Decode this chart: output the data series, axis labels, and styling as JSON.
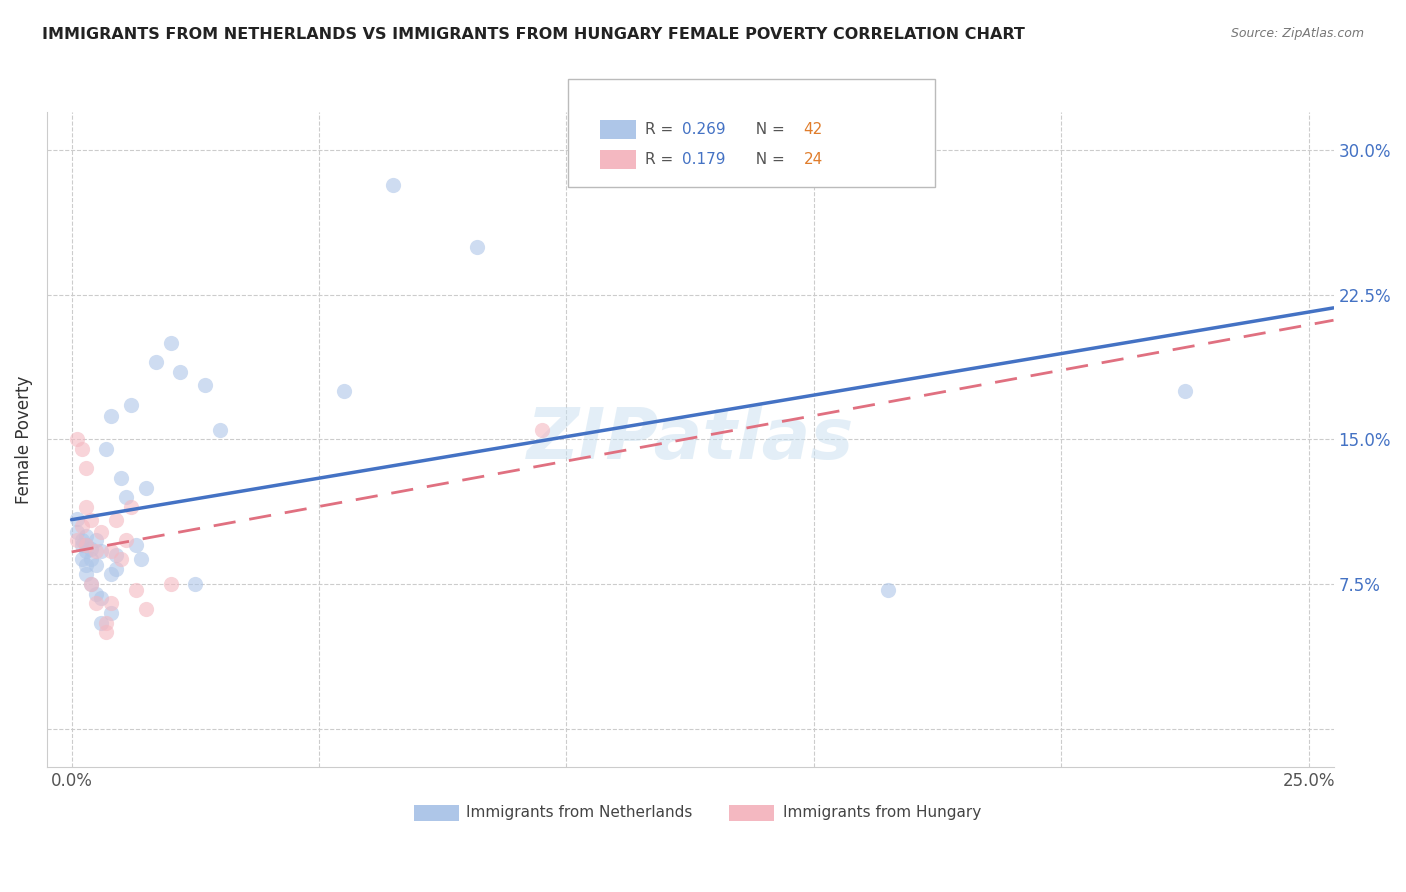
{
  "title": "IMMIGRANTS FROM NETHERLANDS VS IMMIGRANTS FROM HUNGARY FEMALE POVERTY CORRELATION CHART",
  "source": "Source: ZipAtlas.com",
  "ylabel": "Female Poverty",
  "xlim": [
    -0.005,
    0.255
  ],
  "ylim": [
    -0.02,
    0.32
  ],
  "x_ticks": [
    0.0,
    0.05,
    0.1,
    0.15,
    0.2,
    0.25
  ],
  "x_tick_labels": [
    "0.0%",
    "",
    "",
    "",
    "",
    "25.0%"
  ],
  "y_ticks": [
    0.0,
    0.075,
    0.15,
    0.225,
    0.3
  ],
  "y_tick_labels": [
    "",
    "7.5%",
    "15.0%",
    "22.5%",
    "30.0%"
  ],
  "color_netherlands": "#aec6e8",
  "color_hungary": "#f4b8c1",
  "line_netherlands": "#4472c4",
  "line_hungary": "#e07080",
  "watermark": "ZIPatlas",
  "netherlands_x": [
    0.001,
    0.001,
    0.002,
    0.002,
    0.002,
    0.003,
    0.003,
    0.003,
    0.003,
    0.003,
    0.004,
    0.004,
    0.004,
    0.005,
    0.005,
    0.005,
    0.006,
    0.006,
    0.006,
    0.007,
    0.008,
    0.008,
    0.008,
    0.009,
    0.009,
    0.01,
    0.011,
    0.012,
    0.013,
    0.014,
    0.015,
    0.017,
    0.02,
    0.022,
    0.025,
    0.027,
    0.03,
    0.055,
    0.065,
    0.082,
    0.165,
    0.225
  ],
  "netherlands_y": [
    0.109,
    0.102,
    0.095,
    0.088,
    0.098,
    0.1,
    0.092,
    0.085,
    0.08,
    0.095,
    0.093,
    0.088,
    0.075,
    0.07,
    0.085,
    0.098,
    0.092,
    0.055,
    0.068,
    0.145,
    0.162,
    0.06,
    0.08,
    0.09,
    0.083,
    0.13,
    0.12,
    0.168,
    0.095,
    0.088,
    0.125,
    0.19,
    0.2,
    0.185,
    0.075,
    0.178,
    0.155,
    0.175,
    0.282,
    0.25,
    0.072,
    0.175
  ],
  "hungary_x": [
    0.001,
    0.001,
    0.002,
    0.002,
    0.003,
    0.003,
    0.003,
    0.004,
    0.004,
    0.005,
    0.005,
    0.006,
    0.007,
    0.007,
    0.008,
    0.008,
    0.009,
    0.01,
    0.011,
    0.012,
    0.013,
    0.015,
    0.02,
    0.095
  ],
  "hungary_y": [
    0.098,
    0.15,
    0.145,
    0.105,
    0.115,
    0.135,
    0.095,
    0.108,
    0.075,
    0.092,
    0.065,
    0.102,
    0.055,
    0.05,
    0.092,
    0.065,
    0.108,
    0.088,
    0.098,
    0.115,
    0.072,
    0.062,
    0.075,
    0.155
  ],
  "marker_size": 120,
  "marker_alpha": 0.6,
  "nl_R": "0.269",
  "nl_N": "42",
  "hu_R": "0.179",
  "hu_N": "24",
  "legend_R_color": "#4472c4",
  "legend_N_color": "#e07d2c",
  "legend_label_color": "#555555"
}
